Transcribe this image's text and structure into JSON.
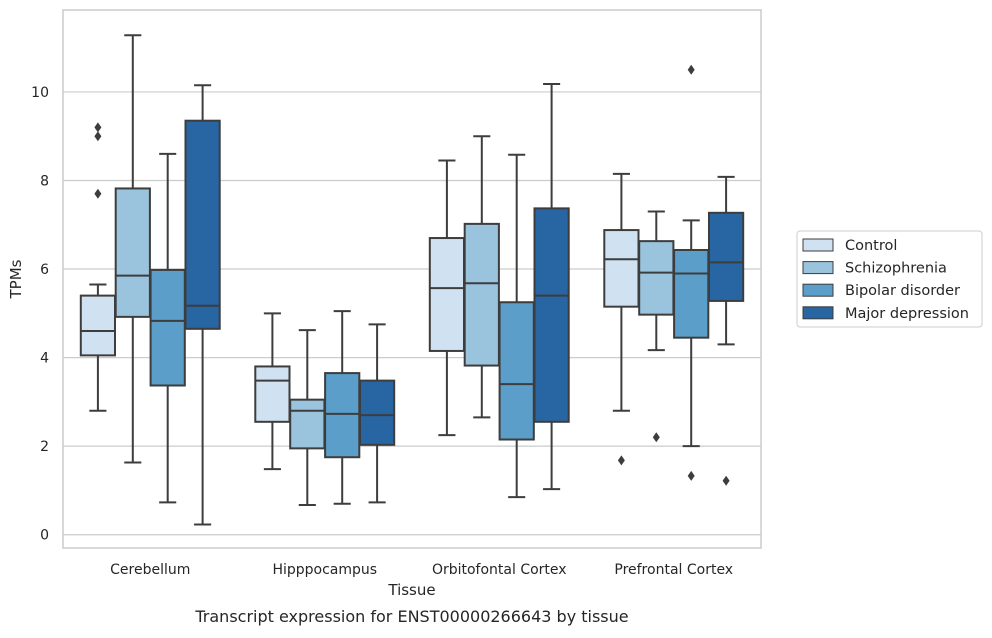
{
  "chart_data": {
    "type": "box",
    "title": "Transcript expression for ENST00000266643 by tissue",
    "xlabel": "Tissue",
    "ylabel": "TPMs",
    "ylim": [
      -0.3,
      11.85
    ],
    "yticks": [
      0,
      2,
      4,
      6,
      8,
      10
    ],
    "grid": true,
    "legend_position": "right",
    "categories": [
      "Cerebellum",
      "Hipppocampus",
      "Orbitofontal Cortex",
      "Prefrontal Cortex"
    ],
    "series": [
      {
        "name": "Control",
        "color": "#d0e1f2",
        "boxes": [
          {
            "whislo": 2.8,
            "q1": 4.05,
            "med": 4.6,
            "q3": 5.4,
            "whishi": 5.65,
            "fliers": [
              7.7,
              9.0,
              9.2
            ]
          },
          {
            "whislo": 1.48,
            "q1": 2.55,
            "med": 3.48,
            "q3": 3.8,
            "whishi": 5.0,
            "fliers": []
          },
          {
            "whislo": 2.25,
            "q1": 4.15,
            "med": 5.57,
            "q3": 6.7,
            "whishi": 8.45,
            "fliers": []
          },
          {
            "whislo": 2.8,
            "q1": 5.15,
            "med": 6.22,
            "q3": 6.88,
            "whishi": 8.15,
            "fliers": [
              1.68
            ]
          }
        ]
      },
      {
        "name": "Schizophrenia",
        "color": "#9ac3de",
        "boxes": [
          {
            "whislo": 1.63,
            "q1": 4.92,
            "med": 5.85,
            "q3": 7.82,
            "whishi": 11.28,
            "fliers": []
          },
          {
            "whislo": 0.67,
            "q1": 1.95,
            "med": 2.8,
            "q3": 3.05,
            "whishi": 4.62,
            "fliers": []
          },
          {
            "whislo": 2.65,
            "q1": 3.82,
            "med": 5.68,
            "q3": 7.02,
            "whishi": 9.0,
            "fliers": []
          },
          {
            "whislo": 4.17,
            "q1": 4.97,
            "med": 5.92,
            "q3": 6.63,
            "whishi": 7.3,
            "fliers": [
              2.2
            ]
          }
        ]
      },
      {
        "name": "Bipolar disorder",
        "color": "#5a9ec9",
        "boxes": [
          {
            "whislo": 0.73,
            "q1": 3.37,
            "med": 4.83,
            "q3": 5.98,
            "whishi": 8.6,
            "fliers": []
          },
          {
            "whislo": 0.7,
            "q1": 1.75,
            "med": 2.73,
            "q3": 3.65,
            "whishi": 5.05,
            "fliers": []
          },
          {
            "whislo": 0.85,
            "q1": 2.15,
            "med": 3.4,
            "q3": 5.25,
            "whishi": 8.58,
            "fliers": []
          },
          {
            "whislo": 2.0,
            "q1": 4.45,
            "med": 5.9,
            "q3": 6.43,
            "whishi": 7.1,
            "fliers": [
              1.33,
              10.5
            ]
          }
        ]
      },
      {
        "name": "Major depression",
        "color": "#2865a3",
        "boxes": [
          {
            "whislo": 0.23,
            "q1": 4.65,
            "med": 5.17,
            "q3": 9.35,
            "whishi": 10.15,
            "fliers": []
          },
          {
            "whislo": 0.73,
            "q1": 2.03,
            "med": 2.7,
            "q3": 3.48,
            "whishi": 4.75,
            "fliers": []
          },
          {
            "whislo": 1.03,
            "q1": 2.55,
            "med": 5.4,
            "q3": 7.37,
            "whishi": 10.18,
            "fliers": []
          },
          {
            "whislo": 4.3,
            "q1": 5.28,
            "med": 6.15,
            "q3": 7.27,
            "whishi": 8.08,
            "fliers": [
              1.22
            ]
          }
        ]
      }
    ]
  }
}
